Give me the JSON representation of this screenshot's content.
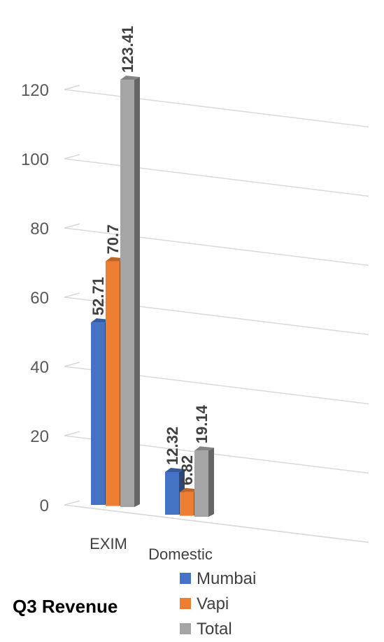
{
  "chart_data": {
    "type": "bar",
    "title": "Q3 Revenue",
    "categories": [
      "EXIM",
      "Domestic"
    ],
    "series": [
      {
        "name": "Mumbai",
        "values": [
          52.71,
          12.32
        ],
        "color": "#4472C4"
      },
      {
        "name": "Vapi",
        "values": [
          70.7,
          6.82
        ],
        "color": "#ED7D31"
      },
      {
        "name": "Total",
        "values": [
          123.41,
          19.14
        ],
        "color": "#A5A5A5"
      }
    ],
    "y_ticks": [
      "0",
      "20",
      "40",
      "60",
      "80",
      "100",
      "120"
    ],
    "ylim": [
      0,
      120
    ],
    "grid": true,
    "legend_position": "bottom-right",
    "style": "3d-clustered-column"
  }
}
